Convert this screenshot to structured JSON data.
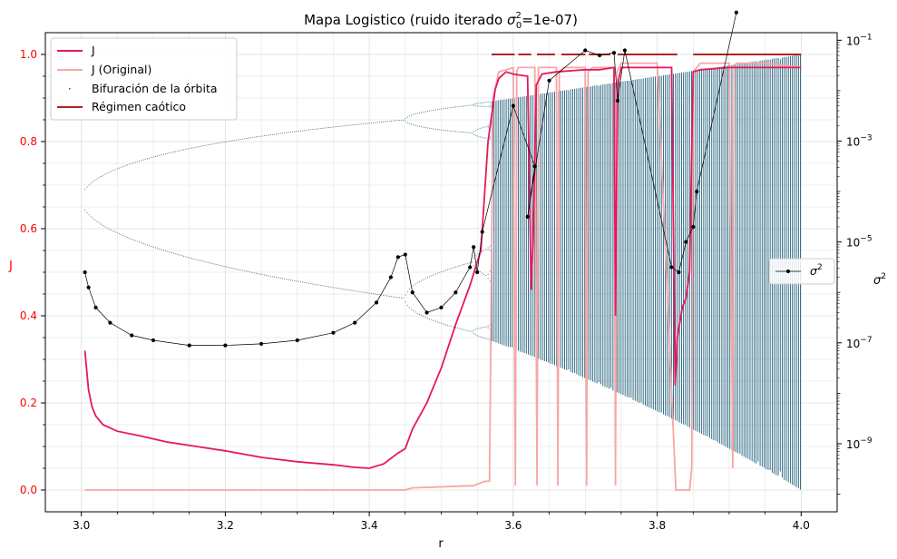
{
  "chart_data": {
    "type": "line",
    "title_main": "Mapa Logistico (ruido iterado ",
    "title_sigma": "σ",
    "title_sub": "0",
    "title_sup": "2",
    "title_tail": "=1e-07)",
    "xlabel": "r",
    "ylabel_left": "J",
    "ylabel_right_base": "σ",
    "ylabel_right_sup": "2",
    "xlim": [
      2.95,
      4.05
    ],
    "ylim_left": [
      -0.05,
      1.05
    ],
    "ylim_right_log10": [
      -10.35,
      -0.85
    ],
    "right_scale": "log",
    "grid": true,
    "x_ticks": [
      "3.0",
      "3.2",
      "3.4",
      "3.6",
      "3.8",
      "4.0"
    ],
    "y_ticks_left": [
      "0.0",
      "0.2",
      "0.4",
      "0.6",
      "0.8",
      "1.0"
    ],
    "y_ticks_right": [
      {
        "base": "10",
        "exp": "−1",
        "log10": -1
      },
      {
        "base": "10",
        "exp": "−3",
        "log10": -3
      },
      {
        "base": "10",
        "exp": "−5",
        "log10": -5
      },
      {
        "base": "10",
        "exp": "−7",
        "log10": -7
      },
      {
        "base": "10",
        "exp": "−9",
        "log10": -9
      }
    ],
    "legend_left": {
      "placement": "upper left",
      "entries": [
        "J",
        "J (Original)",
        "Bifuración de la órbita",
        "Régimen caótico"
      ]
    },
    "legend_right": {
      "placement": "center right",
      "label_base": "σ",
      "label_sup": "2"
    },
    "colors": {
      "J": "#e8175d",
      "J_original": "#f7a6a6",
      "bifurcation": "#1f5f7a",
      "chaotic": "#b22222",
      "sigma2": "#000000",
      "left_axis_text": "#ff0000"
    },
    "series": [
      {
        "name": "J",
        "x": [
          3.005,
          3.01,
          3.015,
          3.02,
          3.03,
          3.05,
          3.08,
          3.12,
          3.16,
          3.2,
          3.25,
          3.3,
          3.35,
          3.38,
          3.4,
          3.42,
          3.44,
          3.45,
          3.46,
          3.48,
          3.5,
          3.52,
          3.54,
          3.555,
          3.565,
          3.575,
          3.58,
          3.59,
          3.6,
          3.62,
          3.625,
          3.628,
          3.632,
          3.64,
          3.66,
          3.7,
          3.72,
          3.74,
          3.742,
          3.745,
          3.75,
          3.8,
          3.82,
          3.825,
          3.828,
          3.835,
          3.84,
          3.845,
          3.85,
          3.86,
          3.9,
          3.95,
          4.0
        ],
        "y": [
          0.32,
          0.23,
          0.19,
          0.17,
          0.15,
          0.135,
          0.125,
          0.11,
          0.1,
          0.09,
          0.075,
          0.065,
          0.058,
          0.052,
          0.05,
          0.06,
          0.085,
          0.095,
          0.14,
          0.2,
          0.28,
          0.38,
          0.47,
          0.55,
          0.8,
          0.92,
          0.945,
          0.96,
          0.955,
          0.95,
          0.46,
          0.6,
          0.93,
          0.955,
          0.96,
          0.965,
          0.965,
          0.97,
          0.4,
          0.93,
          0.97,
          0.97,
          0.97,
          0.24,
          0.35,
          0.42,
          0.44,
          0.5,
          0.96,
          0.965,
          0.97,
          0.97,
          0.97
        ]
      },
      {
        "name": "J (Original)",
        "x": [
          3.005,
          3.45,
          3.46,
          3.545,
          3.56,
          3.567,
          3.572,
          3.58,
          3.6,
          3.603,
          3.605,
          3.607,
          3.61,
          3.63,
          3.633,
          3.635,
          3.64,
          3.66,
          3.662,
          3.664,
          3.67,
          3.7,
          3.702,
          3.704,
          3.71,
          3.74,
          3.742,
          3.744,
          3.75,
          3.8,
          3.826,
          3.83,
          3.845,
          3.848,
          3.85,
          3.86,
          3.9,
          3.905,
          3.907,
          3.91,
          3.95,
          4.0
        ],
        "y": [
          0.0,
          0.0,
          0.005,
          0.01,
          0.02,
          0.02,
          0.9,
          0.96,
          0.97,
          0.01,
          0.96,
          0.97,
          0.97,
          0.97,
          0.01,
          0.97,
          0.97,
          0.97,
          0.01,
          0.96,
          0.97,
          0.97,
          0.01,
          0.96,
          0.97,
          0.97,
          0.01,
          0.96,
          0.98,
          0.98,
          0.0,
          0.0,
          0.0,
          0.05,
          0.96,
          0.98,
          0.98,
          0.05,
          0.97,
          0.98,
          0.98,
          0.97
        ]
      },
      {
        "name": "σ2",
        "x": [
          3.005,
          3.01,
          3.02,
          3.04,
          3.07,
          3.1,
          3.15,
          3.2,
          3.25,
          3.3,
          3.35,
          3.38,
          3.41,
          3.43,
          3.44,
          3.45,
          3.46,
          3.48,
          3.5,
          3.52,
          3.54,
          3.545,
          3.55,
          3.557,
          3.6,
          3.63,
          3.62,
          3.65,
          3.7,
          3.72,
          3.74,
          3.745,
          3.755,
          3.82,
          3.83,
          3.84,
          3.85,
          3.855,
          3.91
        ],
        "y_log10": [
          -5.6,
          -5.9,
          -6.3,
          -6.6,
          -6.85,
          -6.95,
          -7.05,
          -7.05,
          -7.02,
          -6.95,
          -6.8,
          -6.6,
          -6.2,
          -5.7,
          -5.3,
          -5.25,
          -6.0,
          -6.4,
          -6.3,
          -6.0,
          -5.5,
          -5.1,
          -5.6,
          -4.8,
          -2.3,
          -3.5,
          -4.5,
          -1.8,
          -1.2,
          -1.3,
          -1.25,
          -2.2,
          -1.2,
          -5.5,
          -5.6,
          -5.0,
          -4.7,
          -4.0,
          -0.45
        ]
      }
    ],
    "chaotic_regime_segments": [
      [
        3.57,
        3.602
      ],
      [
        3.607,
        3.625
      ],
      [
        3.633,
        3.658
      ],
      [
        3.667,
        3.7
      ],
      [
        3.705,
        3.735
      ],
      [
        3.745,
        3.828
      ],
      [
        3.85,
        4.0
      ]
    ],
    "chaotic_regime_level": 1.0
  }
}
